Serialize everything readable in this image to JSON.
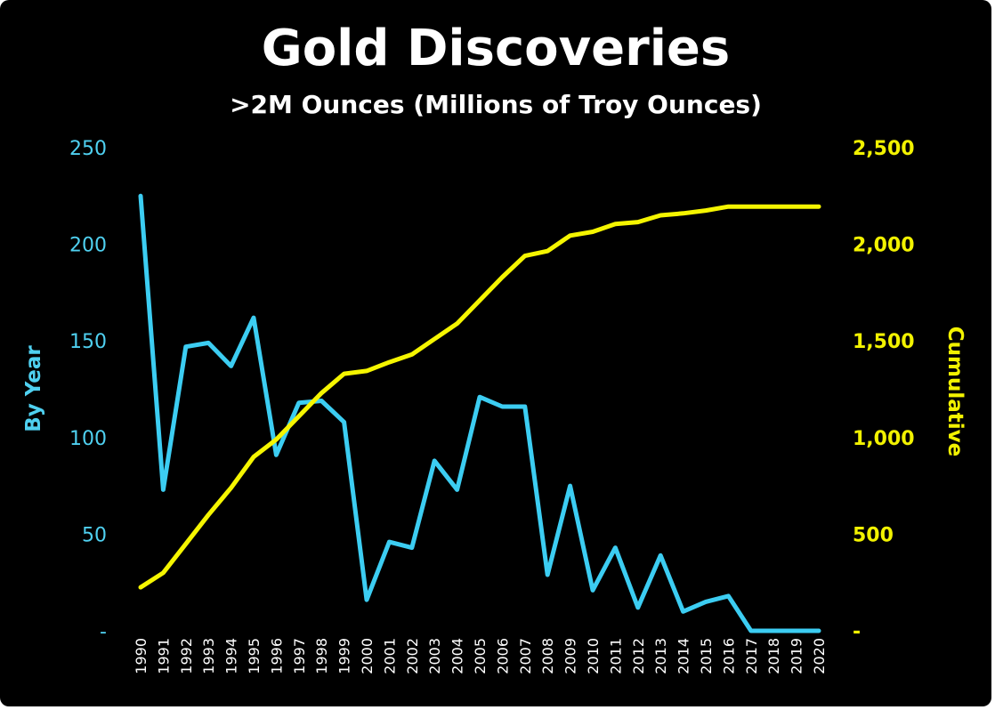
{
  "chart_data": {
    "type": "line",
    "title": "Gold Discoveries",
    "subtitle": ">2M Ounces (Millions of Troy Ounces)",
    "xlabel": "",
    "ylabel": "By Year",
    "y2label": "Cumulative",
    "categories": [
      "1990",
      "1991",
      "1992",
      "1993",
      "1994",
      "1995",
      "1996",
      "1997",
      "1998",
      "1999",
      "2000",
      "2001",
      "2002",
      "2003",
      "2004",
      "2005",
      "2006",
      "2007",
      "2008",
      "2009",
      "2010",
      "2011",
      "2012",
      "2013",
      "2014",
      "2015",
      "2016",
      "2017",
      "2018",
      "2019",
      "2020"
    ],
    "ylim": [
      0,
      250
    ],
    "y2lim": [
      0,
      2500
    ],
    "y_ticks": [
      "-",
      "50",
      "100",
      "150",
      "200",
      "250"
    ],
    "y_tick_values": [
      0,
      50,
      100,
      150,
      200,
      250
    ],
    "y2_ticks": [
      "-",
      "500",
      "1,000",
      "1,500",
      "2,000",
      "2,500"
    ],
    "y2_tick_values": [
      0,
      500,
      1000,
      1500,
      2000,
      2500
    ],
    "grid": false,
    "series": [
      {
        "name": "By Year",
        "axis": "left",
        "color": "#3ccdf2",
        "values": [
          225,
          73,
          147,
          149,
          137,
          162,
          91,
          118,
          119,
          108,
          16,
          46,
          43,
          88,
          73,
          121,
          116,
          116,
          29,
          75,
          21,
          43,
          12,
          39,
          10,
          15,
          18,
          0,
          0,
          0,
          0
        ]
      },
      {
        "name": "Cumulative",
        "axis": "right",
        "color": "#f5f500",
        "values": [
          225,
          300,
          450,
          600,
          740,
          900,
          990,
          1110,
          1230,
          1330,
          1345,
          1390,
          1430,
          1510,
          1590,
          1710,
          1830,
          1940,
          1965,
          2045,
          2065,
          2105,
          2115,
          2150,
          2160,
          2175,
          2195,
          2195,
          2195,
          2195,
          2195
        ]
      }
    ]
  }
}
